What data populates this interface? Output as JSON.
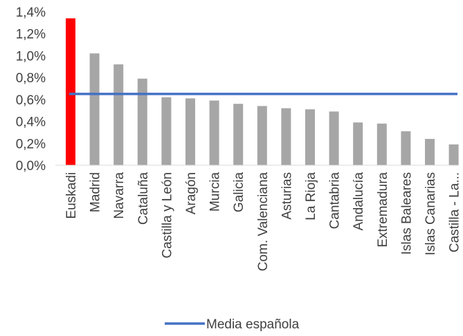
{
  "chart_data": {
    "type": "bar",
    "categories": [
      "Euskadi",
      "Madrid",
      "Navarra",
      "Cataluña",
      "Castilla y León",
      "Aragón",
      "Murcia",
      "Galicia",
      "Com. Valenciana",
      "Asturias",
      "La Rioja",
      "Cantabria",
      "Andalucía",
      "Extremadura",
      "Islas Baleares",
      "Islas Canarias",
      "Castilla - La..."
    ],
    "values": [
      1.34,
      1.02,
      0.92,
      0.79,
      0.62,
      0.61,
      0.59,
      0.56,
      0.54,
      0.52,
      0.51,
      0.49,
      0.39,
      0.38,
      0.31,
      0.24,
      0.19
    ],
    "unit": "%",
    "ylim": [
      0,
      1.4
    ],
    "yticks": [
      0,
      0.2,
      0.4,
      0.6,
      0.8,
      1.0,
      1.2,
      1.4
    ],
    "ytick_labels": [
      "0,0%",
      "0,2%",
      "0,4%",
      "0,6%",
      "0,8%",
      "1,0%",
      "1,2%",
      "1,4%"
    ],
    "grid": false,
    "reference_line": {
      "name": "Media española",
      "value": 0.65,
      "color": "#4472C4"
    },
    "highlight_index": 0,
    "colors": {
      "highlight": "#FF0000",
      "bar": "#A6A6A6",
      "axis": "#D9D9D9",
      "text": "#404040"
    },
    "legend": {
      "position": "bottom",
      "entries": [
        "Media española"
      ]
    }
  }
}
